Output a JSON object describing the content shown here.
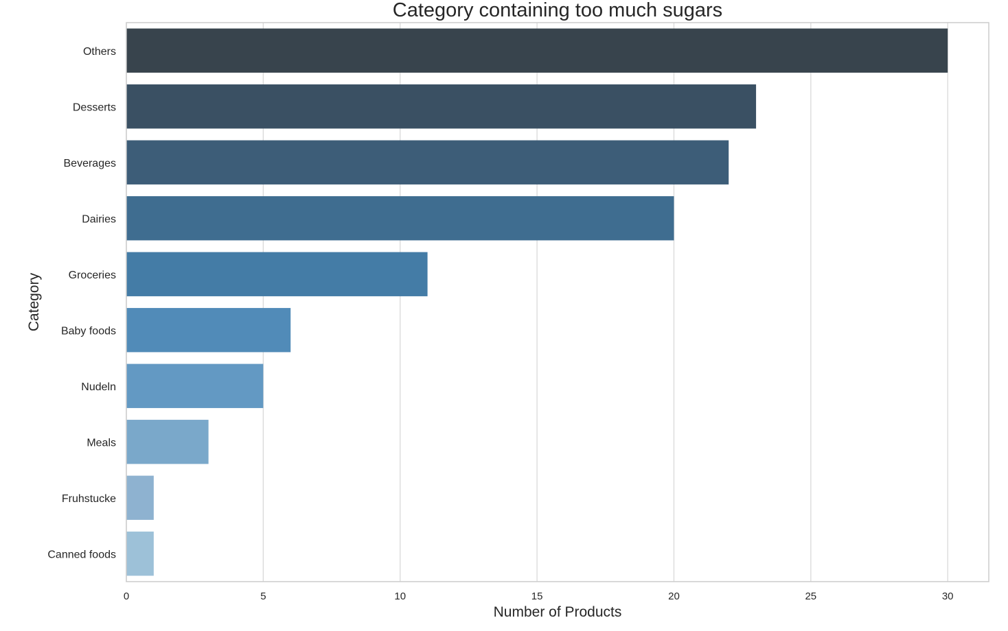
{
  "chart_data": {
    "type": "bar",
    "orientation": "horizontal",
    "title": "Category containing too much sugars",
    "xlabel": "Number of Products",
    "ylabel": "Category",
    "categories": [
      "Others",
      "Desserts",
      "Beverages",
      "Dairies",
      "Groceries",
      "Baby foods",
      "Nudeln",
      "Meals",
      "Fruhstucke",
      "Canned foods"
    ],
    "values": [
      30,
      23,
      22,
      20,
      11,
      6,
      5,
      3,
      1,
      1
    ],
    "xlim": [
      0,
      31.5
    ],
    "xticks": [
      0,
      5,
      10,
      15,
      20,
      25,
      30
    ],
    "xtick_labels": [
      "0",
      "5",
      "10",
      "15",
      "20",
      "25",
      "30"
    ],
    "grid": "vertical",
    "colors": [
      "#38444d",
      "#3a5063",
      "#3d5d78",
      "#3f6d90",
      "#447ca6",
      "#518bb8",
      "#6399c3",
      "#7aa8ca",
      "#8eb2d0",
      "#9dc1d8"
    ]
  }
}
